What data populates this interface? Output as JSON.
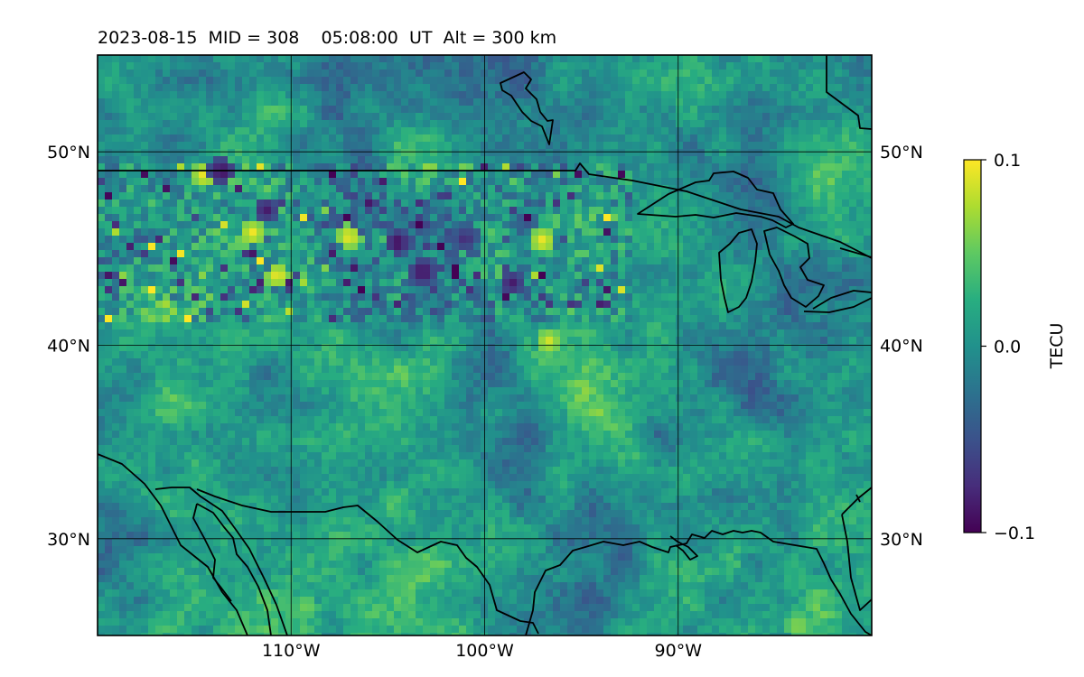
{
  "chart_data": {
    "type": "heatmap",
    "title": "2023-08-15  MID = 308    05:08:00  UT  Alt = 300 km",
    "colormap": "viridis",
    "x_range_deg": [
      -120,
      -80
    ],
    "y_range_deg": [
      25,
      55
    ],
    "x_ticks": [
      {
        "value": -110,
        "label": "110°W"
      },
      {
        "value": -100,
        "label": "100°W"
      },
      {
        "value": -90,
        "label": "90°W"
      }
    ],
    "y_ticks": [
      {
        "value": 50,
        "label": "50°N"
      },
      {
        "value": 40,
        "label": "40°N"
      },
      {
        "value": 30,
        "label": "30°N"
      }
    ],
    "grid": true,
    "colorbar": {
      "label": "TECU",
      "vmin": -0.1,
      "vmax": 0.1,
      "ticks": [
        {
          "value": 0.1,
          "label": "0.1"
        },
        {
          "value": 0.0,
          "label": "0.0"
        },
        {
          "value": -0.1,
          "label": "−0.1"
        }
      ]
    },
    "features": [
      {
        "type": "anomaly_hotspot",
        "lon": -114.5,
        "lat": 48.8,
        "value": 0.1
      },
      {
        "type": "anomaly_hotspot",
        "lon": -112.0,
        "lat": 45.8,
        "value": 0.1
      },
      {
        "type": "anomaly_hotspot",
        "lon": -110.7,
        "lat": 43.6,
        "value": 0.1
      },
      {
        "type": "anomaly_hotspot",
        "lon": -107.0,
        "lat": 45.6,
        "value": 0.1
      },
      {
        "type": "anomaly_hotspot",
        "lon": -97.0,
        "lat": 45.4,
        "value": 0.1
      },
      {
        "type": "anomaly_hotspot",
        "lon": -96.7,
        "lat": 40.2,
        "value": 0.09
      },
      {
        "type": "anomaly_hotspot",
        "lon": -109.2,
        "lat": 26.5,
        "value": 0.06
      },
      {
        "type": "anomaly_hotspot",
        "lon": -83.8,
        "lat": 25.5,
        "value": 0.07
      },
      {
        "type": "anomaly_coldspot",
        "lon": -113.6,
        "lat": 49.0,
        "value": -0.1
      },
      {
        "type": "anomaly_coldspot",
        "lon": -104.5,
        "lat": 45.3,
        "value": -0.1
      },
      {
        "type": "anomaly_coldspot",
        "lon": -103.2,
        "lat": 43.8,
        "value": -0.1
      },
      {
        "type": "anomaly_coldspot",
        "lon": -98.6,
        "lat": 43.2,
        "value": -0.09
      },
      {
        "type": "anomaly_coldspot",
        "lon": -101.0,
        "lat": 45.5,
        "value": -0.08
      },
      {
        "type": "anomaly_coldspot",
        "lon": -111.3,
        "lat": 47.0,
        "value": -0.09
      }
    ]
  }
}
